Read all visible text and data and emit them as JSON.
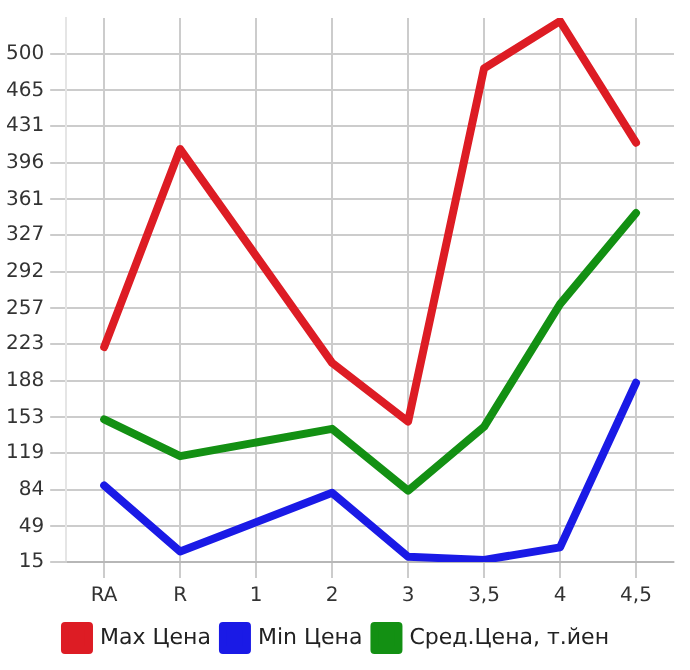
{
  "chart_data": {
    "type": "line",
    "categories": [
      "RA",
      "R",
      "1",
      "2",
      "3",
      "3,5",
      "4",
      "4,5"
    ],
    "series": [
      {
        "name": "Max Цена",
        "color": "#dd1c24",
        "values": [
          220,
          409,
          null,
          205,
          149,
          486,
          531,
          415
        ]
      },
      {
        "name": "Min Цена",
        "color": "#1a1ae6",
        "values": [
          88,
          25,
          null,
          81,
          20,
          17,
          29,
          186
        ]
      },
      {
        "name": "Сред.Цена, т.йен",
        "color": "#139013",
        "values": [
          151,
          116,
          null,
          142,
          83,
          144,
          261,
          348
        ]
      }
    ],
    "ylim": [
      15,
      534
    ],
    "yticks": [
      15,
      49,
      84,
      119,
      153,
      188,
      223,
      257,
      292,
      327,
      361,
      396,
      431,
      465,
      500
    ],
    "grid": true,
    "legend": "bottom",
    "marker": "none",
    "line_style": "solid"
  }
}
